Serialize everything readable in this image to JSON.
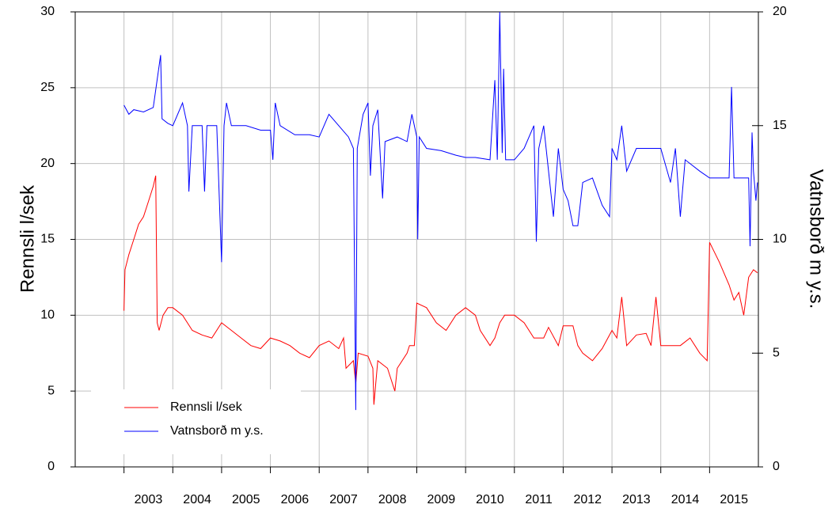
{
  "chart_data": {
    "type": "line",
    "xlim": [
      2002,
      2016
    ],
    "xticks": [
      2003,
      2004,
      2005,
      2006,
      2007,
      2008,
      2009,
      2010,
      2011,
      2012,
      2013,
      2014,
      2015
    ],
    "ylim": [
      0,
      30
    ],
    "yticks": [
      0,
      5,
      10,
      15,
      20,
      25,
      30
    ],
    "y2lim": [
      0,
      20
    ],
    "y2ticks": [
      0,
      5,
      10,
      15,
      20
    ],
    "ylabel": "Rennsli l/sek",
    "y2label": "Vatnsborð m y.s.",
    "grid": true,
    "legend": "lower left",
    "series": [
      {
        "name": "Rennsli l/sek",
        "color": "#ff0000",
        "x": [
          2003.0,
          2003.02,
          2003.1,
          2003.2,
          2003.3,
          2003.4,
          2003.5,
          2003.6,
          2003.65,
          2003.68,
          2003.72,
          2003.8,
          2003.9,
          2004.0,
          2004.2,
          2004.4,
          2004.6,
          2004.8,
          2005.0,
          2005.2,
          2005.4,
          2005.6,
          2005.8,
          2006.0,
          2006.2,
          2006.4,
          2006.6,
          2006.8,
          2007.0,
          2007.2,
          2007.4,
          2007.5,
          2007.55,
          2007.7,
          2007.75,
          2007.8,
          2008.0,
          2008.1,
          2008.12,
          2008.2,
          2008.4,
          2008.55,
          2008.6,
          2008.8,
          2008.85,
          2008.95,
          2009.0,
          2009.2,
          2009.4,
          2009.6,
          2009.8,
          2010.0,
          2010.2,
          2010.3,
          2010.5,
          2010.6,
          2010.7,
          2010.8,
          2011.0,
          2011.2,
          2011.4,
          2011.6,
          2011.7,
          2011.9,
          2012.0,
          2012.2,
          2012.3,
          2012.4,
          2012.6,
          2012.8,
          2013.0,
          2013.1,
          2013.2,
          2013.3,
          2013.5,
          2013.7,
          2013.8,
          2013.9,
          2014.0,
          2014.2,
          2014.4,
          2014.6,
          2014.8,
          2014.95,
          2015.0,
          2015.2,
          2015.4,
          2015.5,
          2015.6,
          2015.7,
          2015.8,
          2015.9,
          2015.98
        ],
        "values": [
          10.3,
          13,
          14,
          15,
          16,
          16.5,
          17.5,
          18.5,
          19.2,
          9.5,
          9,
          10,
          10.5,
          10.5,
          10,
          9,
          8.7,
          8.5,
          9.5,
          9,
          8.5,
          8,
          7.8,
          8.5,
          8.3,
          8,
          7.5,
          7.2,
          8,
          8.3,
          7.8,
          8.5,
          6.5,
          7,
          5.5,
          7.5,
          7.3,
          6.5,
          4.1,
          7,
          6.5,
          5,
          6.5,
          7.5,
          8,
          8,
          10.8,
          10.5,
          9.5,
          9,
          10,
          10.5,
          10,
          9,
          8,
          8.5,
          9.5,
          10,
          10,
          9.5,
          8.5,
          8.5,
          9.2,
          8,
          9.3,
          9.3,
          8,
          7.5,
          7,
          7.8,
          9,
          8.5,
          11.2,
          8,
          8.7,
          8.8,
          8,
          11.2,
          8,
          8,
          8,
          8.5,
          7.5,
          7,
          14.8,
          13.5,
          12,
          11,
          11.5,
          10,
          12.5,
          13,
          12.8
        ]
      },
      {
        "name": "Vatnsborð m y.s.",
        "color": "#0000ff",
        "axis": "y2",
        "x": [
          2003.0,
          2003.1,
          2003.2,
          2003.4,
          2003.6,
          2003.75,
          2003.78,
          2003.9,
          2004.0,
          2004.2,
          2004.3,
          2004.33,
          2004.4,
          2004.6,
          2004.65,
          2004.7,
          2004.9,
          2005.0,
          2005.05,
          2005.1,
          2005.2,
          2005.5,
          2005.8,
          2006.0,
          2006.05,
          2006.1,
          2006.2,
          2006.5,
          2006.8,
          2007.0,
          2007.2,
          2007.4,
          2007.6,
          2007.7,
          2007.72,
          2007.75,
          2007.78,
          2007.9,
          2008.0,
          2008.05,
          2008.1,
          2008.2,
          2008.3,
          2008.35,
          2008.6,
          2008.8,
          2008.9,
          2009.0,
          2009.02,
          2009.05,
          2009.2,
          2009.5,
          2009.8,
          2010.0,
          2010.2,
          2010.5,
          2010.6,
          2010.65,
          2010.7,
          2010.75,
          2010.78,
          2010.82,
          2011.0,
          2011.2,
          2011.4,
          2011.45,
          2011.5,
          2011.6,
          2011.8,
          2011.9,
          2012.0,
          2012.1,
          2012.2,
          2012.3,
          2012.4,
          2012.6,
          2012.8,
          2012.95,
          2013.0,
          2013.1,
          2013.2,
          2013.3,
          2013.5,
          2013.8,
          2014.0,
          2014.2,
          2014.3,
          2014.4,
          2014.5,
          2014.8,
          2015.0,
          2015.4,
          2015.45,
          2015.5,
          2015.8,
          2015.83,
          2015.87,
          2015.9,
          2015.95,
          2015.98
        ],
        "values": [
          15.9,
          15.5,
          15.7,
          15.6,
          15.8,
          18.1,
          15.3,
          15.1,
          15,
          16,
          15,
          12.1,
          15,
          15,
          12.1,
          15,
          15,
          9,
          15,
          16,
          15,
          15,
          14.8,
          14.8,
          13.5,
          16,
          15,
          14.6,
          14.6,
          14.5,
          15.5,
          15,
          14.5,
          14,
          9.5,
          2.5,
          14,
          15.5,
          16,
          12.8,
          15,
          15.7,
          11.8,
          14.3,
          14.5,
          14.3,
          15.5,
          14.5,
          10,
          14.5,
          14,
          13.9,
          13.7,
          13.6,
          13.6,
          13.5,
          17,
          13.5,
          20,
          13.8,
          17.5,
          13.5,
          13.5,
          14,
          15,
          9.9,
          14,
          15,
          11,
          14,
          12.2,
          11.7,
          10.6,
          10.6,
          12.5,
          12.7,
          11.5,
          11,
          14,
          13.5,
          15,
          13,
          14,
          14,
          14,
          12.5,
          14,
          11,
          13.5,
          13,
          12.7,
          12.7,
          16.7,
          12.7,
          12.7,
          9.7,
          14.7,
          13,
          11.7,
          12.5
        ]
      }
    ]
  }
}
